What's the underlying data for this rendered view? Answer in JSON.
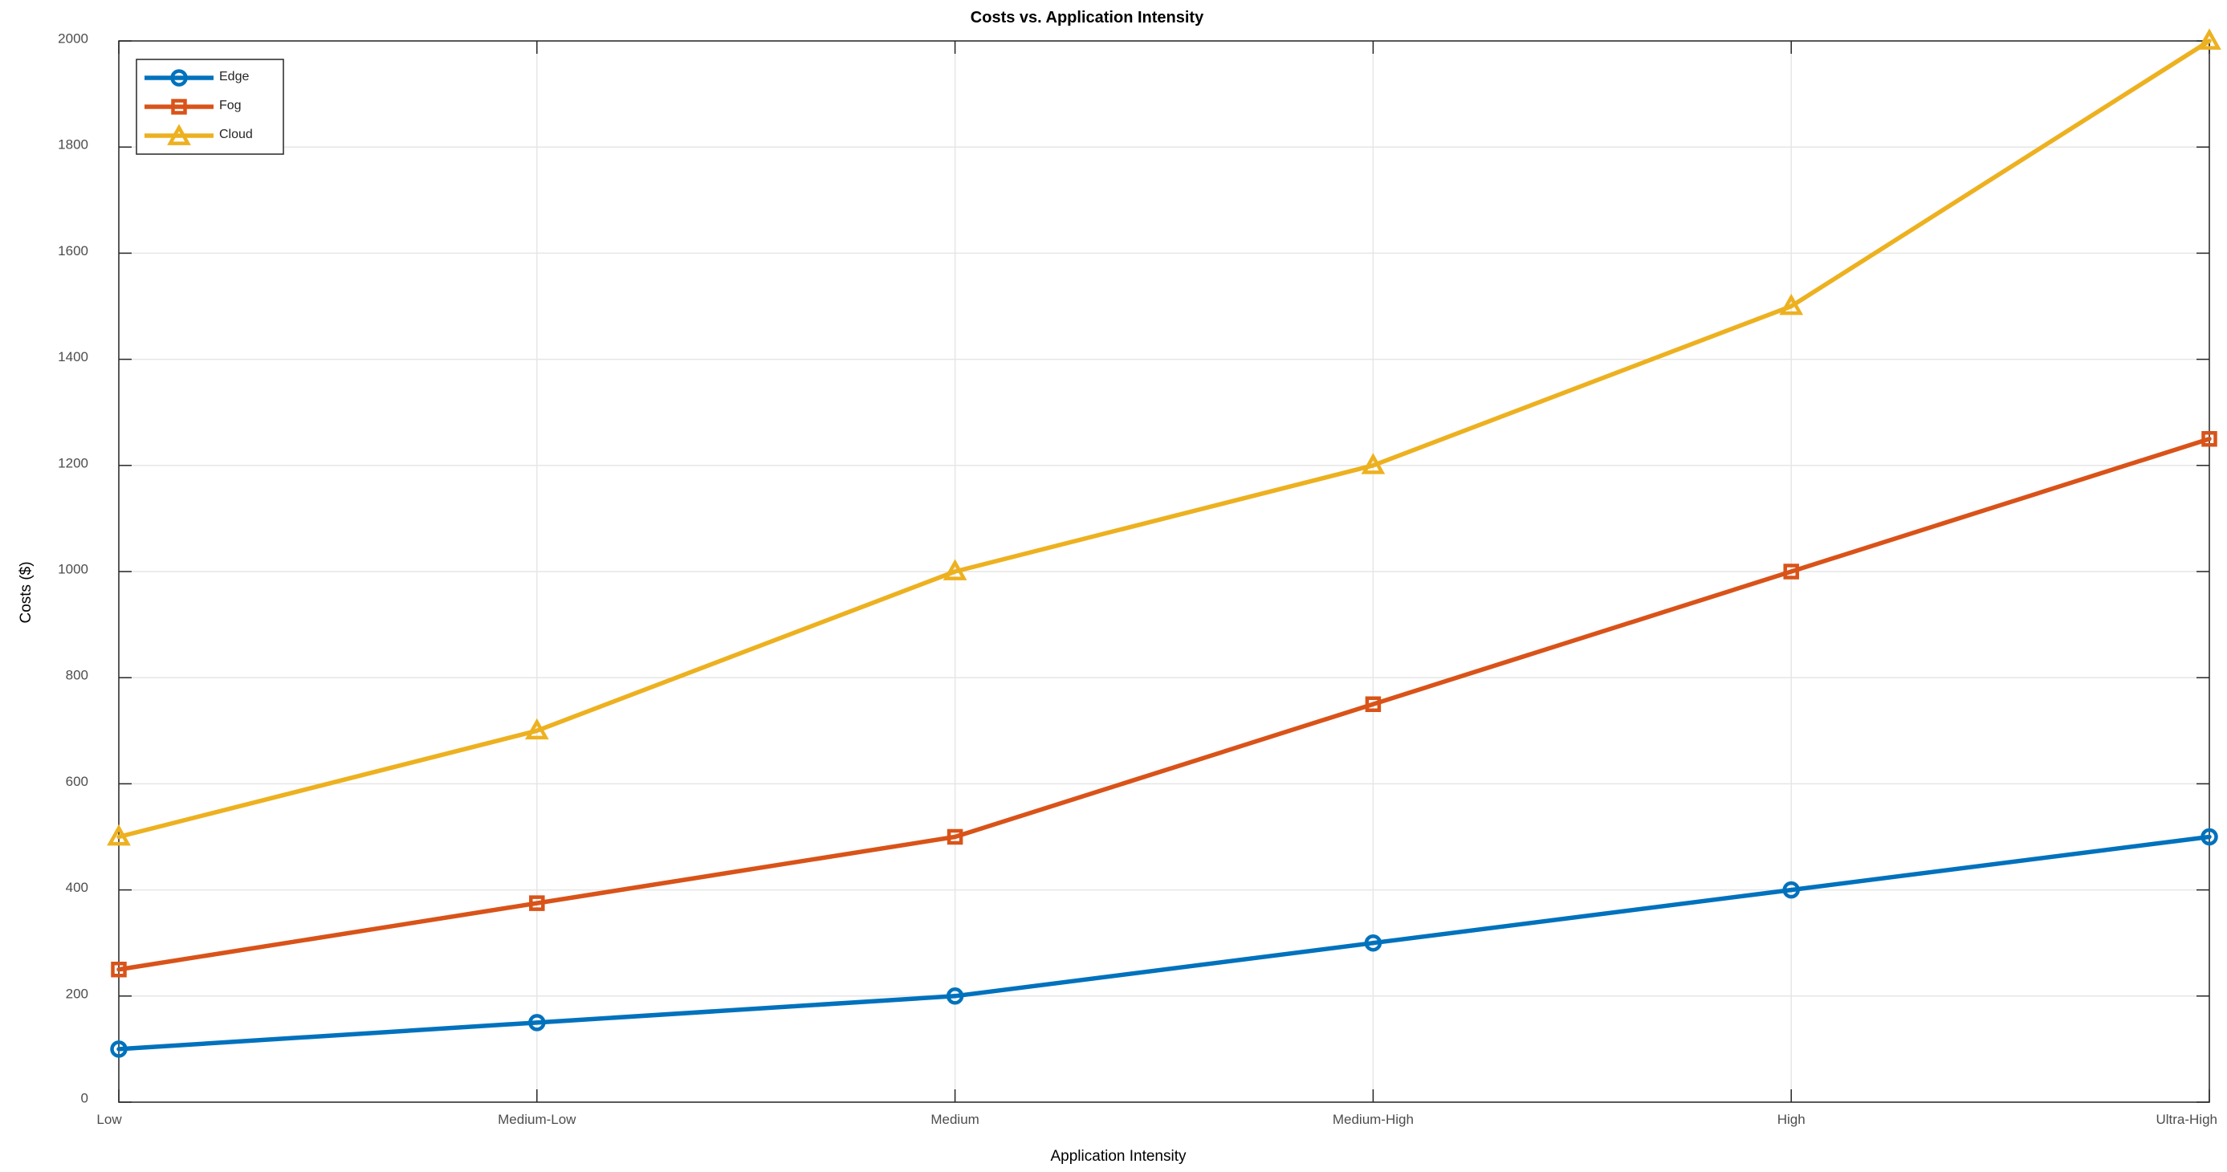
{
  "chart_data": {
    "type": "line",
    "title": "Costs vs. Application Intensity",
    "xlabel": "Application Intensity",
    "ylabel": "Costs ($)",
    "categories": [
      "Low",
      "Medium-Low",
      "Medium",
      "Medium-High",
      "High",
      "Ultra-High"
    ],
    "ylim": [
      0,
      2000
    ],
    "yticks": [
      0,
      200,
      400,
      600,
      800,
      1000,
      1200,
      1400,
      1600,
      1800,
      2000
    ],
    "grid": true,
    "legend_position": "top-left",
    "series": [
      {
        "name": "Edge",
        "color": "#0072BD",
        "marker": "circle",
        "values": [
          100,
          150,
          200,
          300,
          400,
          500
        ]
      },
      {
        "name": "Fog",
        "color": "#D95319",
        "marker": "square",
        "values": [
          250,
          375,
          500,
          750,
          1000,
          1250
        ]
      },
      {
        "name": "Cloud",
        "color": "#EDB120",
        "marker": "triangle",
        "values": [
          500,
          700,
          1000,
          1200,
          1500,
          2000
        ]
      }
    ]
  }
}
